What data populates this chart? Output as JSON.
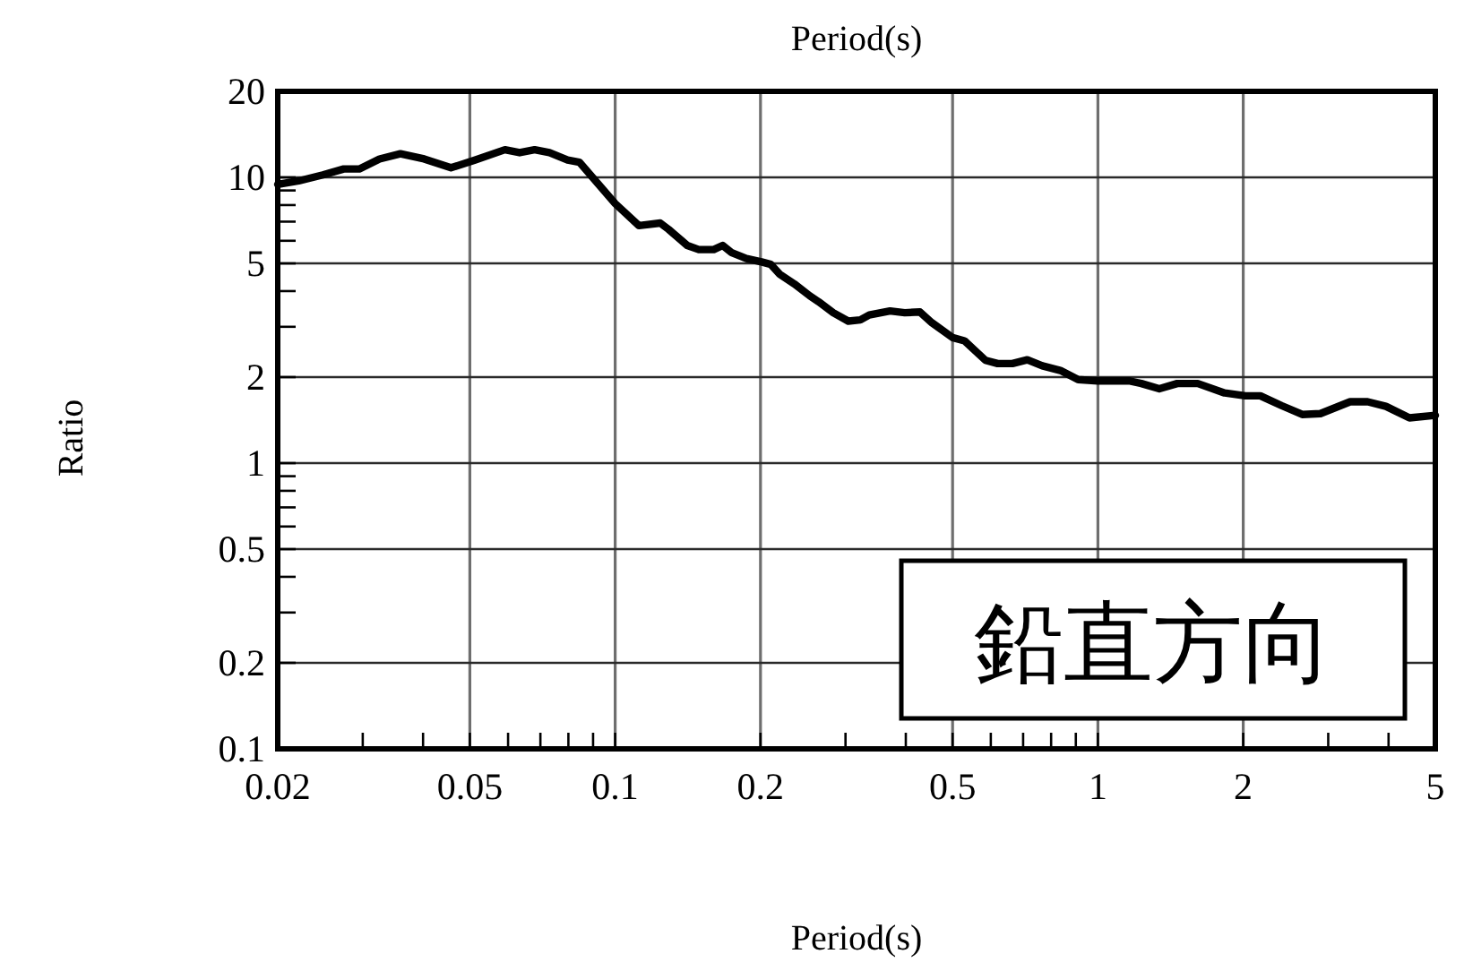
{
  "chart_data": {
    "type": "line",
    "title": "Period(s)",
    "xlabel": "Period(s)",
    "ylabel": "Ratio",
    "annotations": [
      "鉛直方向"
    ],
    "x": [
      0.02,
      0.0221,
      0.0248,
      0.0274,
      0.0295,
      0.0325,
      0.0359,
      0.0402,
      0.0457,
      0.0512,
      0.0591,
      0.0634,
      0.0681,
      0.0731,
      0.0797,
      0.0843,
      0.0906,
      0.1,
      0.112,
      0.124,
      0.129,
      0.141,
      0.149,
      0.16,
      0.167,
      0.174,
      0.187,
      0.201,
      0.21,
      0.219,
      0.235,
      0.253,
      0.264,
      0.283,
      0.304,
      0.322,
      0.336,
      0.371,
      0.398,
      0.428,
      0.453,
      0.5,
      0.529,
      0.585,
      0.62,
      0.665,
      0.714,
      0.767,
      0.836,
      0.91,
      1.0,
      1.16,
      1.23,
      1.34,
      1.46,
      1.61,
      1.83,
      2.02,
      2.17,
      2.4,
      2.65,
      2.89,
      3.33,
      3.62,
      3.95,
      4.42,
      5.0
    ],
    "series": [
      {
        "color": "#000000",
        "values": [
          9.45,
          9.72,
          10.2,
          10.7,
          10.7,
          11.6,
          12.1,
          11.6,
          10.8,
          11.5,
          12.5,
          12.2,
          12.5,
          12.2,
          11.5,
          11.3,
          9.82,
          8.1,
          6.78,
          6.92,
          6.58,
          5.78,
          5.59,
          5.59,
          5.78,
          5.46,
          5.2,
          5.06,
          4.96,
          4.59,
          4.24,
          3.85,
          3.67,
          3.36,
          3.14,
          3.17,
          3.3,
          3.41,
          3.36,
          3.38,
          3.1,
          2.75,
          2.68,
          2.29,
          2.23,
          2.23,
          2.3,
          2.19,
          2.11,
          1.96,
          1.94,
          1.94,
          1.9,
          1.82,
          1.9,
          1.9,
          1.76,
          1.72,
          1.72,
          1.59,
          1.48,
          1.49,
          1.64,
          1.64,
          1.58,
          1.44,
          1.47
        ]
      }
    ],
    "log": "xy",
    "xlim": [
      0.02,
      5
    ],
    "ylim": [
      0.1,
      20
    ],
    "xticks": [
      0.02,
      {
        "value": 0.03,
        "label": null
      },
      {
        "value": 0.04,
        "label": null
      },
      0.05,
      {
        "value": 0.06,
        "label": null
      },
      {
        "value": 0.07,
        "label": null
      },
      {
        "value": 0.08,
        "label": null
      },
      {
        "value": 0.09,
        "label": null
      },
      0.1,
      0.2,
      {
        "value": 0.3,
        "label": null
      },
      {
        "value": 0.4,
        "label": null
      },
      0.5,
      {
        "value": 0.6,
        "label": null
      },
      {
        "value": 0.7,
        "label": null
      },
      {
        "value": 0.8,
        "label": null
      },
      {
        "value": 0.9,
        "label": null
      },
      1,
      2,
      {
        "value": 3,
        "label": null
      },
      {
        "value": 4,
        "label": null
      },
      5
    ],
    "yticks": [
      0.1,
      0.2,
      {
        "value": 0.3,
        "label": null
      },
      {
        "value": 0.4,
        "label": null
      },
      0.5,
      {
        "value": 0.6,
        "label": null
      },
      {
        "value": 0.7,
        "label": null
      },
      {
        "value": 0.8,
        "label": null
      },
      {
        "value": 0.9,
        "label": null
      },
      1,
      2,
      {
        "value": 3,
        "label": null
      },
      {
        "value": 4,
        "label": null
      },
      5,
      {
        "value": 6,
        "label": null
      },
      {
        "value": 7,
        "label": null
      },
      {
        "value": 8,
        "label": null
      },
      {
        "value": 9,
        "label": null
      },
      10,
      20
    ],
    "grid": true,
    "marker": "none",
    "line_style": "solid"
  }
}
